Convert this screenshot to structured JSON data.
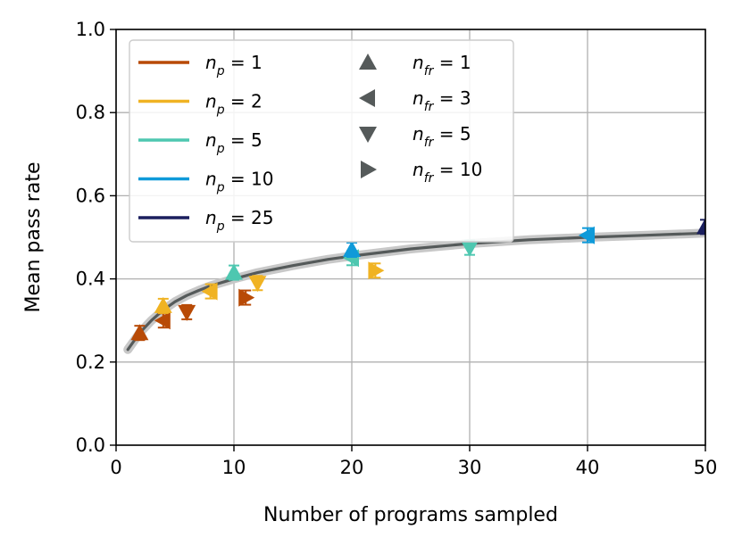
{
  "chart_data": {
    "type": "scatter",
    "xlabel": "Number of programs sampled",
    "ylabel": "Mean pass rate",
    "xlim": [
      0,
      50
    ],
    "ylim": [
      0,
      1
    ],
    "xticks": [
      "0",
      "10",
      "20",
      "30",
      "40",
      "50"
    ],
    "yticks": [
      "0.0",
      "0.2",
      "0.4",
      "0.6",
      "0.8",
      "1.0"
    ],
    "grid": true,
    "legend_placement": "top-left",
    "legend_colors": [
      {
        "var": "n",
        "sub": "p",
        "eq": " = 1",
        "color": "#b84a06"
      },
      {
        "var": "n",
        "sub": "p",
        "eq": " = 2",
        "color": "#f0b323"
      },
      {
        "var": "n",
        "sub": "p",
        "eq": " = 5",
        "color": "#4ec7b0"
      },
      {
        "var": "n",
        "sub": "p",
        "eq": " = 10",
        "color": "#0f9ad9"
      },
      {
        "var": "n",
        "sub": "p",
        "eq": " = 25",
        "color": "#1b1f5e"
      }
    ],
    "legend_markers": [
      {
        "var": "n",
        "sub": "fr",
        "eq": " = 1",
        "marker": "triangle-up"
      },
      {
        "var": "n",
        "sub": "fr",
        "eq": " = 3",
        "marker": "triangle-left"
      },
      {
        "var": "n",
        "sub": "fr",
        "eq": " = 5",
        "marker": "triangle-down"
      },
      {
        "var": "n",
        "sub": "fr",
        "eq": " = 10",
        "marker": "triangle-right"
      }
    ],
    "marker_color": "#555a5a",
    "curve": {
      "color": "#555a5a",
      "band_color": "#c8c8c8",
      "x": [
        1,
        1.5,
        2,
        3,
        4,
        5,
        6,
        7,
        8,
        10,
        12,
        15,
        18,
        20,
        25,
        30,
        35,
        40,
        45,
        50
      ],
      "y": [
        0.23,
        0.25,
        0.27,
        0.3,
        0.325,
        0.345,
        0.36,
        0.372,
        0.383,
        0.4,
        0.415,
        0.432,
        0.447,
        0.455,
        0.472,
        0.485,
        0.494,
        0.5,
        0.505,
        0.51
      ]
    },
    "points": [
      {
        "np": 1,
        "nfr": 1,
        "x": 2,
        "y": 0.27,
        "color": "#b84a06",
        "marker": "triangle-up"
      },
      {
        "np": 1,
        "nfr": 3,
        "x": 4,
        "y": 0.3,
        "color": "#b84a06",
        "marker": "triangle-left"
      },
      {
        "np": 1,
        "nfr": 5,
        "x": 6,
        "y": 0.32,
        "color": "#b84a06",
        "marker": "triangle-down"
      },
      {
        "np": 1,
        "nfr": 10,
        "x": 11,
        "y": 0.355,
        "color": "#b84a06",
        "marker": "triangle-right"
      },
      {
        "np": 2,
        "nfr": 1,
        "x": 4,
        "y": 0.335,
        "color": "#f0b323",
        "marker": "triangle-up"
      },
      {
        "np": 2,
        "nfr": 3,
        "x": 8,
        "y": 0.37,
        "color": "#f0b323",
        "marker": "triangle-left"
      },
      {
        "np": 2,
        "nfr": 5,
        "x": 12,
        "y": 0.39,
        "color": "#f0b323",
        "marker": "triangle-down"
      },
      {
        "np": 2,
        "nfr": 10,
        "x": 22,
        "y": 0.42,
        "color": "#f0b323",
        "marker": "triangle-right"
      },
      {
        "np": 5,
        "nfr": 1,
        "x": 10,
        "y": 0.415,
        "color": "#4ec7b0",
        "marker": "triangle-up"
      },
      {
        "np": 5,
        "nfr": 3,
        "x": 20,
        "y": 0.45,
        "color": "#4ec7b0",
        "marker": "triangle-left"
      },
      {
        "np": 5,
        "nfr": 5,
        "x": 30,
        "y": 0.475,
        "color": "#4ec7b0",
        "marker": "triangle-down"
      },
      {
        "np": 10,
        "nfr": 1,
        "x": 20,
        "y": 0.47,
        "color": "#0f9ad9",
        "marker": "triangle-up"
      },
      {
        "np": 10,
        "nfr": 3,
        "x": 40,
        "y": 0.505,
        "color": "#0f9ad9",
        "marker": "triangle-left"
      },
      {
        "np": 25,
        "nfr": 1,
        "x": 50,
        "y": 0.525,
        "color": "#1b1f5e",
        "marker": "triangle-up"
      }
    ]
  }
}
